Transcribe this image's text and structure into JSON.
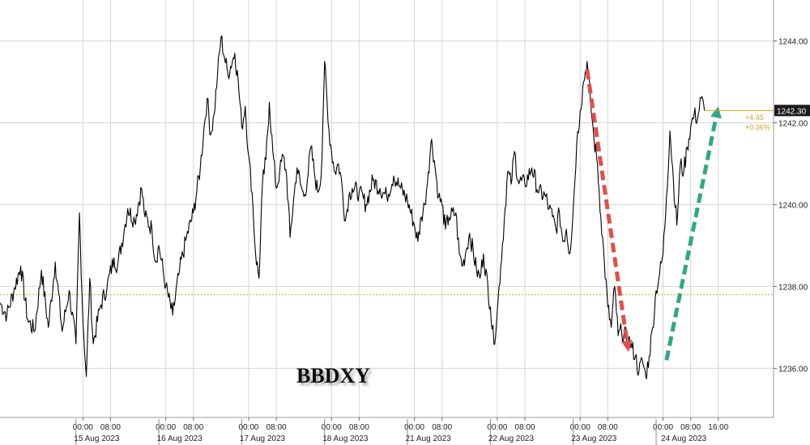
{
  "chart_data": {
    "type": "line",
    "title": "BBDXY",
    "ylim": [
      1234.8,
      1245.0
    ],
    "yticks": [
      "1236.00",
      "1238.00",
      "1240.00",
      "1242.00",
      "1244.00"
    ],
    "ytick_values": [
      1236,
      1238,
      1240,
      1242,
      1244
    ],
    "x_unit": "hours since 15 Aug 2023 00:00",
    "xlim": [
      -24,
      200
    ],
    "time_labels": [
      {
        "x": 0,
        "label": "00:00"
      },
      {
        "x": 8,
        "label": "08:00"
      },
      {
        "x": 24,
        "label": "00:00"
      },
      {
        "x": 32,
        "label": "08:00"
      },
      {
        "x": 48,
        "label": "00:00"
      },
      {
        "x": 56,
        "label": "08:00"
      },
      {
        "x": 72,
        "label": "00:00"
      },
      {
        "x": 80,
        "label": "08:00"
      },
      {
        "x": 96,
        "label": "00:00"
      },
      {
        "x": 104,
        "label": "08:00"
      },
      {
        "x": 120,
        "label": "00:00"
      },
      {
        "x": 128,
        "label": "08:00"
      },
      {
        "x": 144,
        "label": "00:00"
      },
      {
        "x": 152,
        "label": "08:00"
      },
      {
        "x": 168,
        "label": "00:00"
      },
      {
        "x": 176,
        "label": "08:00"
      },
      {
        "x": 184,
        "label": "16:00"
      }
    ],
    "date_labels": [
      {
        "x": 4,
        "label": "15 Aug 2023"
      },
      {
        "x": 28,
        "label": "16 Aug 2023"
      },
      {
        "x": 52,
        "label": "17 Aug 2023"
      },
      {
        "x": 76,
        "label": "18 Aug 2023"
      },
      {
        "x": 100,
        "label": "21 Aug 2023"
      },
      {
        "x": 124,
        "label": "22 Aug 2023"
      },
      {
        "x": 148,
        "label": "23 Aug 2023"
      },
      {
        "x": 174,
        "label": "24 Aug 2023"
      }
    ],
    "series": [
      {
        "color": "#000000",
        "points": [
          [
            -24,
            1237.6
          ],
          [
            -22,
            1237.3
          ],
          [
            -20,
            1237.9
          ],
          [
            -18,
            1238.5
          ],
          [
            -16,
            1237.2
          ],
          [
            -14,
            1236.9
          ],
          [
            -12,
            1238.4
          ],
          [
            -10,
            1237.0
          ],
          [
            -8,
            1238.6
          ],
          [
            -6,
            1236.9
          ],
          [
            -4,
            1237.9
          ],
          [
            -2,
            1236.6
          ],
          [
            -1,
            1239.8
          ],
          [
            0,
            1237.2
          ],
          [
            1,
            1235.8
          ],
          [
            2,
            1238.2
          ],
          [
            3,
            1236.6
          ],
          [
            5,
            1237.5
          ],
          [
            7,
            1238.0
          ],
          [
            9,
            1238.7
          ],
          [
            10,
            1238.5
          ],
          [
            12,
            1239.4
          ],
          [
            13,
            1239.9
          ],
          [
            15,
            1239.6
          ],
          [
            17,
            1240.4
          ],
          [
            18,
            1239.7
          ],
          [
            20,
            1239.4
          ],
          [
            21,
            1238.6
          ],
          [
            22,
            1239.0
          ],
          [
            24,
            1238.0
          ],
          [
            26,
            1237.3
          ],
          [
            28,
            1238.4
          ],
          [
            30,
            1239.2
          ],
          [
            32,
            1239.8
          ],
          [
            34,
            1240.9
          ],
          [
            35,
            1241.8
          ],
          [
            36,
            1242.6
          ],
          [
            37,
            1241.7
          ],
          [
            38,
            1242.2
          ],
          [
            39,
            1243.2
          ],
          [
            40,
            1244.1
          ],
          [
            41,
            1243.6
          ],
          [
            42,
            1243.2
          ],
          [
            44,
            1243.7
          ],
          [
            45,
            1243.0
          ],
          [
            46,
            1241.9
          ],
          [
            47,
            1242.4
          ],
          [
            48,
            1241.2
          ],
          [
            49,
            1240.3
          ],
          [
            50,
            1238.8
          ],
          [
            51,
            1238.2
          ],
          [
            52,
            1240.5
          ],
          [
            53,
            1241.1
          ],
          [
            54,
            1242.5
          ],
          [
            55,
            1241.3
          ],
          [
            56,
            1240.4
          ],
          [
            57,
            1240.8
          ],
          [
            58,
            1241.2
          ],
          [
            59,
            1240.7
          ],
          [
            60,
            1239.2
          ],
          [
            61,
            1240.1
          ],
          [
            62,
            1240.9
          ],
          [
            63,
            1240.5
          ],
          [
            64,
            1240.2
          ],
          [
            65,
            1240.6
          ],
          [
            66,
            1241.4
          ],
          [
            67,
            1240.8
          ],
          [
            68,
            1240.3
          ],
          [
            69,
            1240.7
          ],
          [
            70,
            1243.5
          ],
          [
            71,
            1242.0
          ],
          [
            72,
            1241.3
          ],
          [
            73,
            1240.8
          ],
          [
            74,
            1241.0
          ],
          [
            75,
            1240.5
          ],
          [
            76,
            1239.6
          ],
          [
            77,
            1240.2
          ],
          [
            78,
            1240.4
          ],
          [
            80,
            1240.3
          ],
          [
            82,
            1240.0
          ],
          [
            84,
            1240.6
          ],
          [
            86,
            1240.4
          ],
          [
            88,
            1240.2
          ],
          [
            90,
            1240.7
          ],
          [
            92,
            1240.4
          ],
          [
            94,
            1240.1
          ],
          [
            96,
            1239.5
          ],
          [
            97,
            1239.1
          ],
          [
            98,
            1239.7
          ],
          [
            99,
            1240.0
          ],
          [
            100,
            1240.8
          ],
          [
            101,
            1241.6
          ],
          [
            102,
            1240.9
          ],
          [
            103,
            1240.2
          ],
          [
            104,
            1240.0
          ],
          [
            105,
            1239.4
          ],
          [
            106,
            1239.7
          ],
          [
            108,
            1239.8
          ],
          [
            109,
            1238.8
          ],
          [
            110,
            1238.5
          ],
          [
            111,
            1238.9
          ],
          [
            112,
            1239.3
          ],
          [
            114,
            1238.4
          ],
          [
            115,
            1238.2
          ],
          [
            116,
            1238.8
          ],
          [
            118,
            1237.5
          ],
          [
            119,
            1236.6
          ],
          [
            120,
            1237.4
          ],
          [
            121,
            1238.5
          ],
          [
            122,
            1239.6
          ],
          [
            123,
            1240.8
          ],
          [
            124,
            1240.5
          ],
          [
            125,
            1241.3
          ],
          [
            126,
            1240.6
          ],
          [
            128,
            1240.5
          ],
          [
            130,
            1240.9
          ],
          [
            132,
            1240.3
          ],
          [
            134,
            1240.2
          ],
          [
            135,
            1239.9
          ],
          [
            136,
            1239.7
          ],
          [
            137,
            1239.4
          ],
          [
            138,
            1239.8
          ],
          [
            139,
            1239.1
          ],
          [
            140,
            1239.4
          ],
          [
            141,
            1238.8
          ],
          [
            142,
            1239.9
          ],
          [
            143,
            1241.5
          ],
          [
            144,
            1242.3
          ],
          [
            145,
            1243.0
          ],
          [
            146,
            1243.5
          ],
          [
            147,
            1242.5
          ],
          [
            148,
            1241.6
          ],
          [
            149,
            1241.0
          ],
          [
            150,
            1239.7
          ],
          [
            151,
            1238.6
          ],
          [
            152,
            1237.5
          ],
          [
            153,
            1237.0
          ],
          [
            154,
            1238.0
          ],
          [
            155,
            1236.8
          ],
          [
            156,
            1236.9
          ],
          [
            158,
            1236.7
          ],
          [
            159,
            1236.5
          ],
          [
            160,
            1236.3
          ],
          [
            161,
            1235.9
          ],
          [
            162,
            1236.2
          ],
          [
            163,
            1235.8
          ],
          [
            164,
            1236.3
          ],
          [
            165,
            1237.0
          ],
          [
            166,
            1237.9
          ],
          [
            167,
            1238.3
          ],
          [
            168,
            1238.8
          ],
          [
            169,
            1240.2
          ],
          [
            170,
            1241.8
          ],
          [
            171,
            1240.6
          ],
          [
            172,
            1239.5
          ],
          [
            173,
            1241.0
          ],
          [
            174,
            1240.8
          ],
          [
            175,
            1241.4
          ],
          [
            176,
            1241.9
          ],
          [
            177,
            1242.2
          ],
          [
            178,
            1242.1
          ],
          [
            179,
            1242.6
          ],
          [
            180,
            1242.3
          ]
        ]
      }
    ],
    "reference_line": {
      "y": 1237.8,
      "color": "#e6b84f"
    },
    "last_value": {
      "label": "1242.30",
      "y": 1242.3
    },
    "change_labels": [
      "+4.45",
      "+0.36%"
    ],
    "arrows": [
      {
        "color": "#e0504a",
        "from": [
          146,
          1243.3
        ],
        "to": [
          158,
          1236.4
        ]
      },
      {
        "color": "#2fa889",
        "from": [
          169,
          1236.2
        ],
        "to": [
          184,
          1242.4
        ]
      }
    ],
    "grid": true,
    "legend": "none"
  }
}
